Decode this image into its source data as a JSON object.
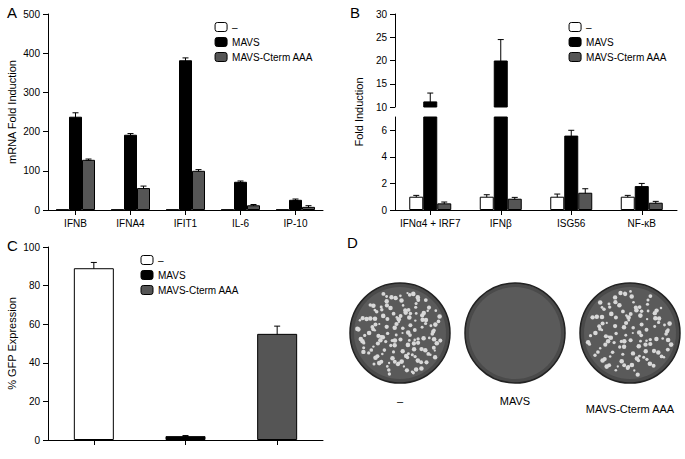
{
  "chart_data": [
    {
      "type": "bar",
      "title": "A",
      "ylabel": "mRNA Fold Induction",
      "categories": [
        "IFNB",
        "IFNA4",
        "IFIT1",
        "IL-6",
        "IP-10"
      ],
      "series": [
        {
          "name": "–",
          "color": "#ffffff",
          "values": [
            1,
            1,
            1,
            1,
            1
          ]
        },
        {
          "name": "MAVS",
          "color": "#000000",
          "values": [
            238,
            192,
            382,
            72,
            26
          ],
          "errors": [
            10,
            3,
            6,
            2,
            2
          ]
        },
        {
          "name": "MAVS-Cterm AAA",
          "color": "#555555",
          "values": [
            128,
            56,
            100,
            12,
            8
          ],
          "errors": [
            2,
            5,
            3,
            2,
            3
          ]
        }
      ],
      "ylim": [
        0,
        500
      ],
      "yticks": [
        0,
        100,
        200,
        300,
        400,
        500
      ],
      "grid": false,
      "legend": "upper right"
    },
    {
      "type": "bar",
      "title": "B",
      "ylabel": "Fold Induction",
      "categories": [
        "IFNα4 + IRF7",
        "IFNβ",
        "ISG56",
        "NF-κB"
      ],
      "series": [
        {
          "name": "–",
          "color": "#ffffff",
          "values": [
            1,
            1,
            1,
            1
          ],
          "errors": [
            0.1,
            0.15,
            0.2,
            0.1
          ]
        },
        {
          "name": "MAVS",
          "color": "#000000",
          "values": [
            11.2,
            20,
            5.6,
            1.8
          ],
          "errors": [
            1.8,
            4.5,
            0.4,
            0.2
          ]
        },
        {
          "name": "MAVS-Cterm AAA",
          "color": "#555555",
          "values": [
            0.5,
            0.85,
            1.3,
            0.55
          ],
          "errors": [
            0.1,
            0.1,
            0.3,
            0.1
          ]
        }
      ],
      "ylim": [
        0,
        30
      ],
      "yticks": [
        0,
        2,
        4,
        6,
        10,
        15,
        20,
        25,
        30
      ],
      "grid": false,
      "legend": "upper right"
    },
    {
      "type": "bar",
      "title": "C",
      "ylabel": "% GFP Expression",
      "categories": [
        null,
        null,
        null
      ],
      "series": [
        {
          "name": "–",
          "color": "#ffffff",
          "values": [
            89,
            null,
            null
          ],
          "errors": [
            3,
            null,
            null
          ]
        },
        {
          "name": "MAVS",
          "color": "#000000",
          "values": [
            null,
            2,
            null
          ],
          "errors": [
            null,
            0.3,
            null
          ]
        },
        {
          "name": "MAVS-Cterm AAA",
          "color": "#555555",
          "values": [
            null,
            null,
            55
          ],
          "errors": [
            null,
            null,
            4
          ]
        }
      ],
      "ylim": [
        0,
        100
      ],
      "yticks": [
        0,
        20,
        40,
        60,
        80,
        100
      ],
      "grid": false,
      "legend": "upper center"
    }
  ],
  "image_panel": {
    "title": "D",
    "labels": [
      "–",
      "MAVS",
      "MAVS-Cterm AAA"
    ]
  }
}
